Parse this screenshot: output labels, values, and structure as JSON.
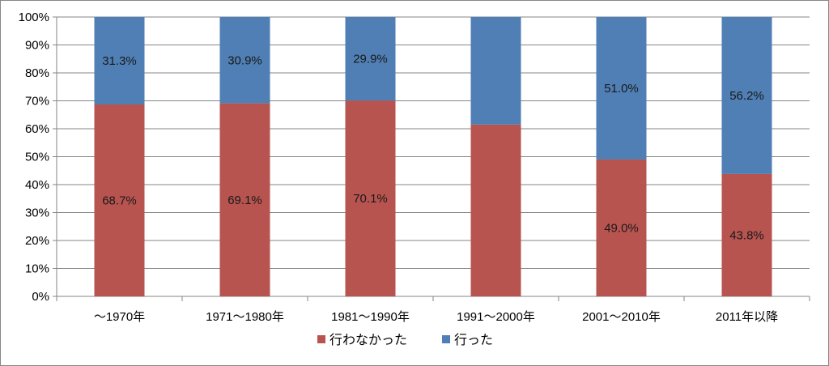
{
  "chart_data": {
    "type": "bar",
    "stacked": true,
    "percent_stacked": true,
    "categories": [
      "〜1970年",
      "1971〜1980年",
      "1981〜1990年",
      "1991〜2000年",
      "2001〜2010年",
      "2011年以降"
    ],
    "series": [
      {
        "name": "行わなかった",
        "color": "#b85450",
        "values": [
          68.7,
          69.1,
          70.1,
          61.5,
          49.0,
          43.8
        ],
        "labels": [
          "68.7%",
          "69.1%",
          "70.1%",
          "",
          "49.0%",
          "43.8%"
        ]
      },
      {
        "name": "行った",
        "color": "#4f7fb4",
        "values": [
          31.3,
          30.9,
          29.9,
          38.5,
          51.0,
          56.2
        ],
        "labels": [
          "31.3%",
          "30.9%",
          "29.9%",
          "",
          "51.0%",
          "56.2%"
        ]
      }
    ],
    "yticks": [
      "0%",
      "10%",
      "20%",
      "30%",
      "40%",
      "50%",
      "60%",
      "70%",
      "80%",
      "90%",
      "100%"
    ],
    "ylim": [
      0,
      100
    ],
    "grid": true,
    "legend_position": "bottom"
  }
}
